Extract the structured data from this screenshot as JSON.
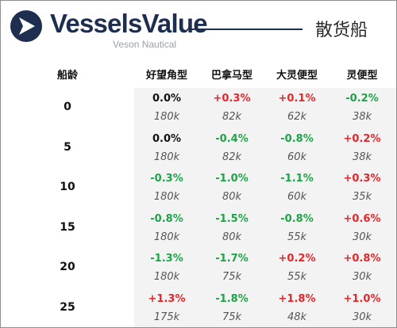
{
  "brand": {
    "name": "VesselsValue",
    "sub": "Veson Nautical",
    "title": "散货船"
  },
  "columns": {
    "age": "船龄",
    "types": [
      "好望角型",
      "巴拿马型",
      "大灵便型",
      "灵便型"
    ]
  },
  "colors": {
    "up": "#e5262b",
    "down": "#1fa34a",
    "flat": "#111111",
    "brand_navy": "#1e2e4f",
    "band": "#f3f3f3"
  },
  "rows": [
    {
      "age": "0",
      "cells": [
        {
          "chg": "0.0%",
          "price": "180k"
        },
        {
          "chg": "+0.3%",
          "price": "82k"
        },
        {
          "chg": "+0.1%",
          "price": "62k"
        },
        {
          "chg": "-0.2%",
          "price": "38k"
        }
      ]
    },
    {
      "age": "5",
      "cells": [
        {
          "chg": "0.0%",
          "price": "180k"
        },
        {
          "chg": "-0.4%",
          "price": "82k"
        },
        {
          "chg": "-0.8%",
          "price": "60k"
        },
        {
          "chg": "+0.2%",
          "price": "38k"
        }
      ]
    },
    {
      "age": "10",
      "cells": [
        {
          "chg": "-0.3%",
          "price": "180k"
        },
        {
          "chg": "-1.0%",
          "price": "80k"
        },
        {
          "chg": "-1.1%",
          "price": "60k"
        },
        {
          "chg": "+0.3%",
          "price": "35k"
        }
      ]
    },
    {
      "age": "15",
      "cells": [
        {
          "chg": "-0.8%",
          "price": "180k"
        },
        {
          "chg": "-1.5%",
          "price": "80k"
        },
        {
          "chg": "-0.8%",
          "price": "55k"
        },
        {
          "chg": "+0.6%",
          "price": "30k"
        }
      ]
    },
    {
      "age": "20",
      "cells": [
        {
          "chg": "-1.3%",
          "price": "180k"
        },
        {
          "chg": "-1.7%",
          "price": "75k"
        },
        {
          "chg": "+0.2%",
          "price": "55k"
        },
        {
          "chg": "+0.8%",
          "price": "30k"
        }
      ]
    },
    {
      "age": "25",
      "cells": [
        {
          "chg": "+1.3%",
          "price": "175k"
        },
        {
          "chg": "-1.8%",
          "price": "75k"
        },
        {
          "chg": "+1.8%",
          "price": "48k"
        },
        {
          "chg": "+1.0%",
          "price": "30k"
        }
      ]
    }
  ]
}
